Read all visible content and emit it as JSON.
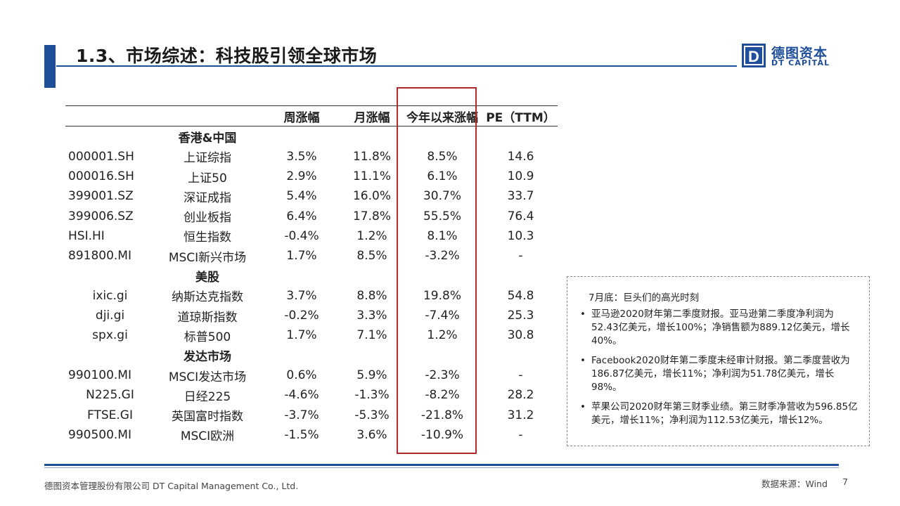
{
  "header": {
    "title": "1.3、市场综述：科技股引领全球市场"
  },
  "logo": {
    "mark": "D",
    "cn": "德图资本",
    "en": "DT CAPITAL"
  },
  "table": {
    "columns": [
      "",
      "",
      "周涨幅",
      "月涨幅",
      "今年以来涨幅",
      "PE（TTM）"
    ],
    "groups": [
      {
        "name": "香港&中国",
        "rows": [
          [
            "000001.SH",
            "上证综指",
            "3.5%",
            "11.8%",
            "8.5%",
            "14.6"
          ],
          [
            "000016.SH",
            "上证50",
            "2.9%",
            "11.1%",
            "6.1%",
            "10.9"
          ],
          [
            "399001.SZ",
            "深证成指",
            "5.4%",
            "16.0%",
            "30.7%",
            "33.7"
          ],
          [
            "399006.SZ",
            "创业板指",
            "6.4%",
            "17.8%",
            "55.5%",
            "76.4"
          ],
          [
            "HSI.HI",
            "恒生指数",
            "-0.4%",
            "1.2%",
            "8.1%",
            "10.3"
          ],
          [
            "891800.MI",
            "MSCI新兴市场",
            "1.7%",
            "8.5%",
            "-3.2%",
            "-"
          ]
        ]
      },
      {
        "name": "美股",
        "rows": [
          [
            "ixic.gi",
            "纳斯达克指数",
            "3.7%",
            "8.8%",
            "19.8%",
            "54.8"
          ],
          [
            "dji.gi",
            "道琼斯指数",
            "-0.2%",
            "3.3%",
            "-7.4%",
            "25.3"
          ],
          [
            "spx.gi",
            "标普500",
            "1.7%",
            "7.1%",
            "1.2%",
            "30.8"
          ]
        ]
      },
      {
        "name": "发达市场",
        "rows": [
          [
            "990100.MI",
            "MSCI发达市场",
            "0.6%",
            "5.9%",
            "-2.3%",
            "-"
          ],
          [
            "N225.GI",
            "日经225",
            "-4.6%",
            "-1.3%",
            "-8.2%",
            "28.2"
          ],
          [
            "FTSE.GI",
            "英国富时指数",
            "-3.7%",
            "-5.3%",
            "-21.8%",
            "31.2"
          ],
          [
            "990500.MI",
            "MSCI欧洲",
            "-1.5%",
            "3.6%",
            "-10.9%",
            "-"
          ]
        ]
      }
    ]
  },
  "note": {
    "title": "7月底：巨头们的高光时刻",
    "items": [
      "亚马逊2020财年第二季度财报。亚马逊第二季度净利润为52.43亿美元，增长100%；净销售额为889.12亿美元，增长40%。",
      "Facebook2020财年第二季度未经审计财报。第二季度营收为186.87亿美元，增长11%；净利润为51.78亿美元，增长98%。",
      "苹果公司2020财年第三财季业绩。第三财季净营收为596.85亿美元，增长11%；净利润为112.53亿美元，增长12%。"
    ]
  },
  "footer": {
    "company": "德图资本管理股份有限公司  DT Capital Management  Co., Ltd.",
    "source": "数据来源：Wind",
    "page": "7"
  },
  "colors": {
    "brand_blue": "#1f4e9a",
    "highlight_red": "#b0282c"
  }
}
